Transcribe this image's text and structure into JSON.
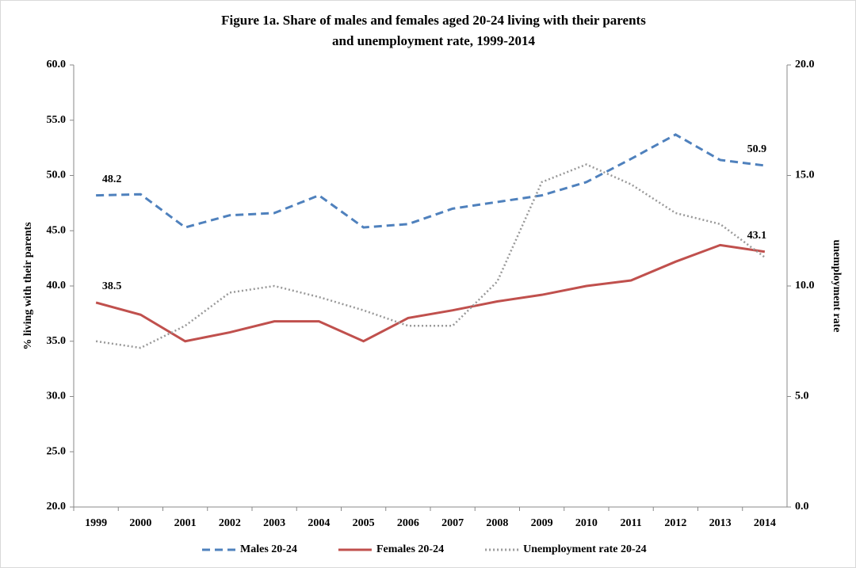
{
  "chart_data": {
    "type": "line",
    "title": [
      "Figure 1a. Share of males and females aged 20-24 living with their parents",
      "and unemployment rate, 1999-2014"
    ],
    "y_label": "% living with their parents",
    "y2_label": "unemployment  rate",
    "categories": [
      "1999",
      "2000",
      "2001",
      "2002",
      "2003",
      "2004",
      "2005",
      "2006",
      "2007",
      "2008",
      "2009",
      "2010",
      "2011",
      "2012",
      "2013",
      "2014"
    ],
    "series": [
      {
        "name": "Males 20-24",
        "color": "#4f81bd",
        "dash": "dashed",
        "values": [
          48.2,
          48.3,
          45.3,
          46.4,
          46.6,
          48.2,
          45.3,
          45.6,
          47.0,
          47.6,
          48.2,
          49.4,
          51.5,
          53.7,
          51.4,
          50.9
        ],
        "value_labels": [
          "48.2",
          null,
          null,
          null,
          null,
          null,
          null,
          null,
          null,
          null,
          null,
          null,
          null,
          null,
          null,
          "50.9"
        ]
      },
      {
        "name": "Females 20-24",
        "color": "#c0504d",
        "dash": "solid",
        "values": [
          38.5,
          37.4,
          35.0,
          35.8,
          36.8,
          36.8,
          35.0,
          37.1,
          37.8,
          38.6,
          39.2,
          40.0,
          40.5,
          42.2,
          43.7,
          43.1
        ],
        "value_labels": [
          "38.5",
          null,
          null,
          null,
          null,
          null,
          null,
          null,
          null,
          null,
          null,
          null,
          null,
          null,
          null,
          "43.1"
        ]
      },
      {
        "name": "Unemployment rate 20-24",
        "color": "#999999",
        "dash": "dotted",
        "axis": "y2",
        "values": [
          7.5,
          7.2,
          8.2,
          9.7,
          10.0,
          9.5,
          8.9,
          8.2,
          8.2,
          10.2,
          14.7,
          15.5,
          14.6,
          13.3,
          12.8,
          11.3
        ]
      }
    ],
    "ylim": [
      20,
      60
    ],
    "yticks": [
      {
        "value": 20,
        "label": "20.0"
      },
      {
        "value": 25,
        "label": "25.0"
      },
      {
        "value": 30,
        "label": "30.0"
      },
      {
        "value": 35,
        "label": "35.0"
      },
      {
        "value": 40,
        "label": "40.0"
      },
      {
        "value": 45,
        "label": "45.0"
      },
      {
        "value": 50,
        "label": "50.0"
      },
      {
        "value": 55,
        "label": "55.0"
      },
      {
        "value": 60,
        "label": "60.0"
      }
    ],
    "y2lim": [
      0,
      20
    ],
    "y2ticks": [
      {
        "value": 0,
        "label": "0.0"
      },
      {
        "value": 5,
        "label": "5.0"
      },
      {
        "value": 10,
        "label": "10.0"
      },
      {
        "value": 15,
        "label": "15.0"
      },
      {
        "value": 20,
        "label": "20.0"
      }
    ],
    "legend": "bottom"
  }
}
